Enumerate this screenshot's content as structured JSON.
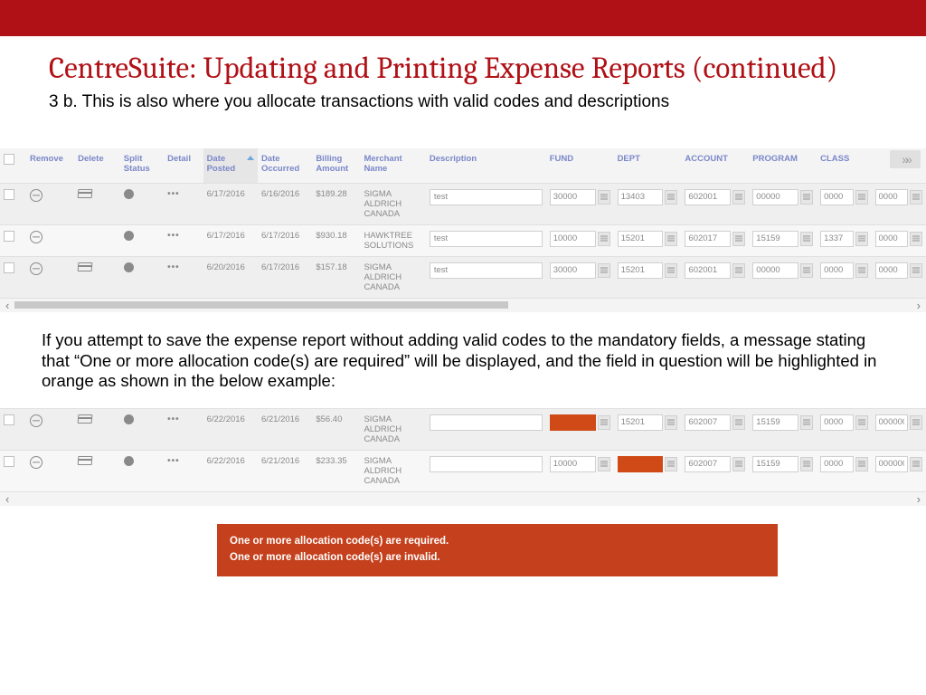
{
  "title": "CentreSuite: Updating and Printing Expense Reports (continued)",
  "subtitle": "3 b. This is also where you allocate transactions with valid codes and descriptions",
  "para2": "If you attempt to save the expense report without adding valid codes to the mandatory fields, a message stating that “One or more allocation code(s) are required”  will be displayed, and the field in question will be highlighted in orange as shown in the below example:",
  "headers": {
    "remove": "Remove",
    "delete": "Delete",
    "split": "Split Status",
    "detail": "Detail",
    "dateposted": "Date Posted",
    "dateoccurred": "Date Occurred",
    "amount": "Billing Amount",
    "merchant": "Merchant Name",
    "description": "Description",
    "fund": "FUND",
    "dept": "DEPT",
    "account": "ACCOUNT",
    "program": "PROGRAM",
    "class": "CLASS",
    "extra": ""
  },
  "rows1": [
    {
      "dp": "6/17/2016",
      "do": "6/16/2016",
      "amt": "$189.28",
      "merch": "SIGMA ALDRICH CANADA",
      "desc": "test",
      "fund": "30000",
      "dept": "13403",
      "acct": "602001",
      "prog": "00000",
      "cls": "0000",
      "ext": "0000"
    },
    {
      "dp": "6/17/2016",
      "do": "6/17/2016",
      "amt": "$930.18",
      "merch": "HAWKTREE SOLUTIONS",
      "desc": "test",
      "fund": "10000",
      "dept": "15201",
      "acct": "602017",
      "prog": "15159",
      "cls": "1337",
      "ext": "0000"
    },
    {
      "dp": "6/20/2016",
      "do": "6/17/2016",
      "amt": "$157.18",
      "merch": "SIGMA ALDRICH CANADA",
      "desc": "test",
      "fund": "30000",
      "dept": "15201",
      "acct": "602001",
      "prog": "00000",
      "cls": "0000",
      "ext": "0000"
    }
  ],
  "rows2": [
    {
      "dp": "6/22/2016",
      "do": "6/21/2016",
      "amt": "$56.40",
      "merch": "SIGMA ALDRICH CANADA",
      "desc": "",
      "fund": "",
      "fund_err": true,
      "dept": "15201",
      "dept_err": false,
      "acct": "602007",
      "prog": "15159",
      "cls": "0000",
      "ext": "000000"
    },
    {
      "dp": "6/22/2016",
      "do": "6/21/2016",
      "amt": "$233.35",
      "merch": "SIGMA ALDRICH CANADA",
      "desc": "",
      "fund": "10000",
      "fund_err": false,
      "dept": "",
      "dept_err": true,
      "acct": "602007",
      "prog": "15159",
      "cls": "0000",
      "ext": "000000"
    }
  ],
  "error_lines": [
    "One or more allocation code(s) are required.",
    "One or more allocation code(s) are invalid."
  ],
  "colors": {
    "brand_red": "#b01116",
    "header_link": "#7a87c9",
    "error_bg": "#c5401c",
    "highlight_orange": "#cf4a17"
  }
}
